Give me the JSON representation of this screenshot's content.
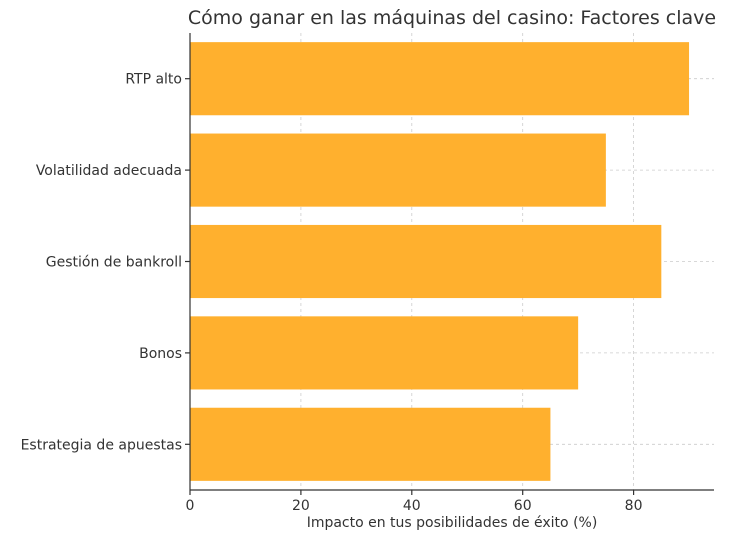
{
  "chart_data": {
    "type": "bar",
    "orientation": "horizontal",
    "title": "Cómo ganar en las máquinas del casino: Factores clave",
    "xlabel": "Impacto en tus posibilidades de éxito (%)",
    "ylabel": "",
    "categories": [
      "RTP alto",
      "Volatilidad adecuada",
      "Gestión de bankroll",
      "Bonos",
      "Estrategia de apuestas"
    ],
    "values": [
      90,
      75,
      85,
      70,
      65
    ],
    "xlim": [
      0,
      94.5
    ],
    "xticks": [
      0,
      20,
      40,
      60,
      80
    ],
    "grid": true,
    "bar_color": "#FFB02E"
  }
}
